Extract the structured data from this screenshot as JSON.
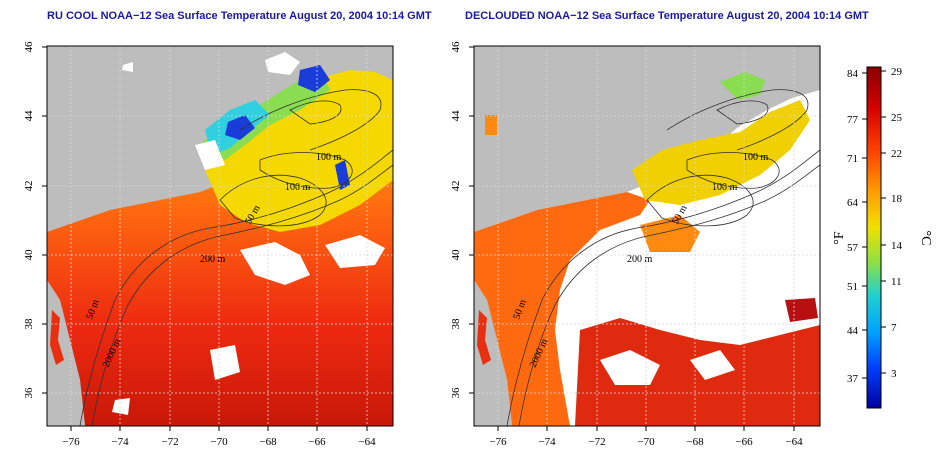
{
  "left_panel": {
    "title": "RU COOL NOAA−12 Sea Surface Temperature August 20, 2004 10:14 GMT"
  },
  "right_panel": {
    "title": "DECLOUDED NOAA−12 Sea Surface Temperature August 20, 2004 10:14 GMT"
  },
  "map_axes": {
    "lon_ticks": [
      "−76",
      "−74",
      "−72",
      "−70",
      "−68",
      "−66",
      "−64"
    ],
    "lat_ticks": [
      "46",
      "44",
      "42",
      "40",
      "38",
      "36"
    ]
  },
  "contour_labels": [
    "100 m",
    "100 m",
    "50 m",
    "200 m",
    "50 m",
    "2000 m"
  ],
  "colorbar": {
    "fahrenheit_ticks": [
      "84",
      "77",
      "71",
      "64",
      "57",
      "51",
      "44",
      "37"
    ],
    "celsius_ticks": [
      "29",
      "25",
      "22",
      "18",
      "14",
      "11",
      "7",
      "3"
    ],
    "fahrenheit_unit": "°F",
    "celsius_unit": "°C"
  },
  "colors": {
    "land": "#bdbdbd",
    "cloud": "#ffffff",
    "title": "#1a1aa0"
  }
}
